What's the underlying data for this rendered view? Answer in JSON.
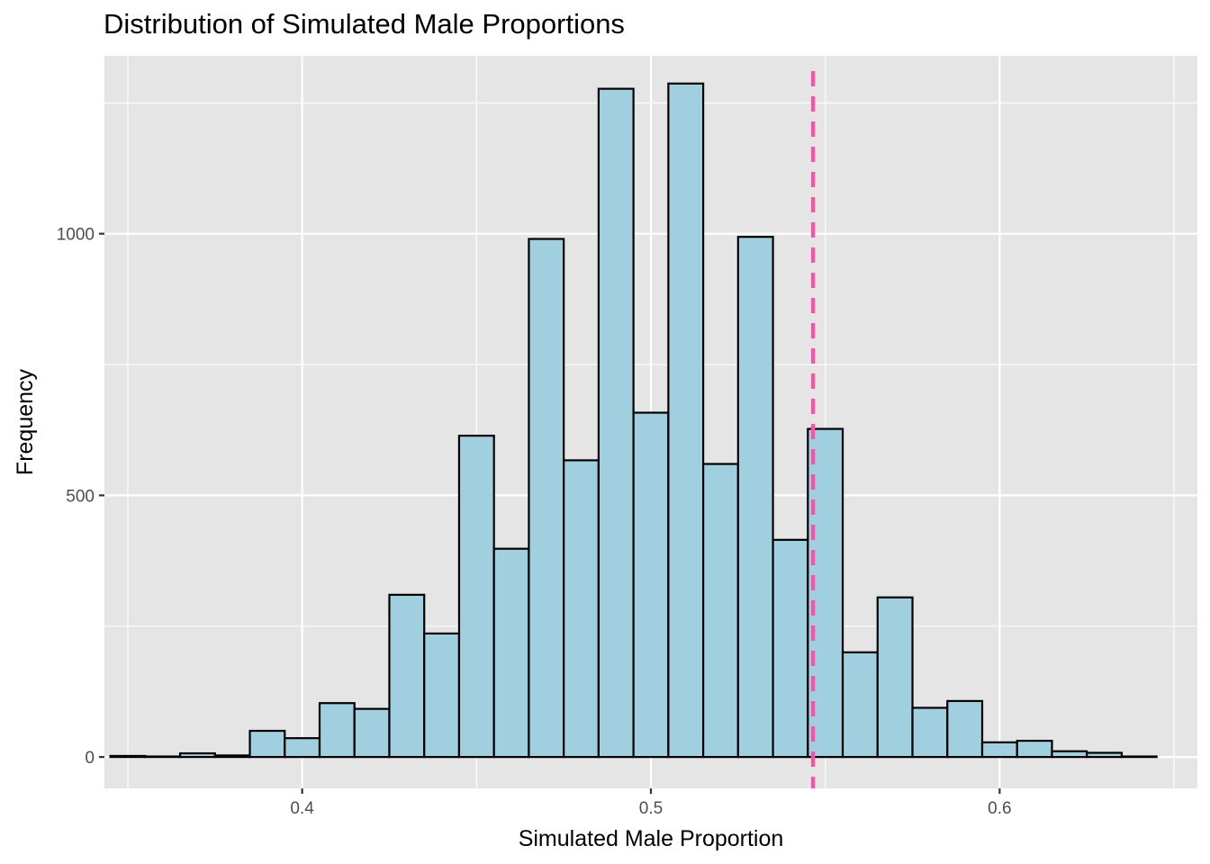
{
  "chart_data": {
    "type": "bar",
    "title": "Distribution of Simulated Male Proportions",
    "xlabel": "Simulated Male Proportion",
    "ylabel": "Frequency",
    "xlim": [
      0.3433,
      0.6567
    ],
    "ylim": [
      -60,
      1340
    ],
    "x_ticks": [
      0.4,
      0.5,
      0.6
    ],
    "x_tick_labels": [
      "0.4",
      "0.5",
      "0.6"
    ],
    "y_ticks": [
      0,
      500,
      1000
    ],
    "y_tick_labels": [
      "0",
      "500",
      "1000"
    ],
    "bin_width": 0.01,
    "bins": [
      0.35,
      0.36,
      0.37,
      0.38,
      0.39,
      0.4,
      0.41,
      0.42,
      0.43,
      0.44,
      0.45,
      0.46,
      0.47,
      0.48,
      0.49,
      0.5,
      0.51,
      0.52,
      0.53,
      0.54,
      0.55,
      0.56,
      0.57,
      0.58,
      0.59,
      0.6,
      0.61,
      0.62,
      0.63,
      0.64
    ],
    "values": [
      2,
      1,
      7,
      3,
      50,
      36,
      103,
      92,
      310,
      236,
      614,
      398,
      990,
      567,
      1277,
      658,
      1287,
      560,
      994,
      415,
      627,
      200,
      305,
      94,
      107,
      28,
      31,
      11,
      8,
      1
    ],
    "reference_line": {
      "x": 0.5465,
      "style": "dashed",
      "color": "#ff4fa8"
    },
    "colors": {
      "bar_fill": "#a0cfe0",
      "bar_stroke": "#000000",
      "panel": "#e5e5e5",
      "grid": "#ffffff"
    },
    "grid": true,
    "legend": "none"
  }
}
